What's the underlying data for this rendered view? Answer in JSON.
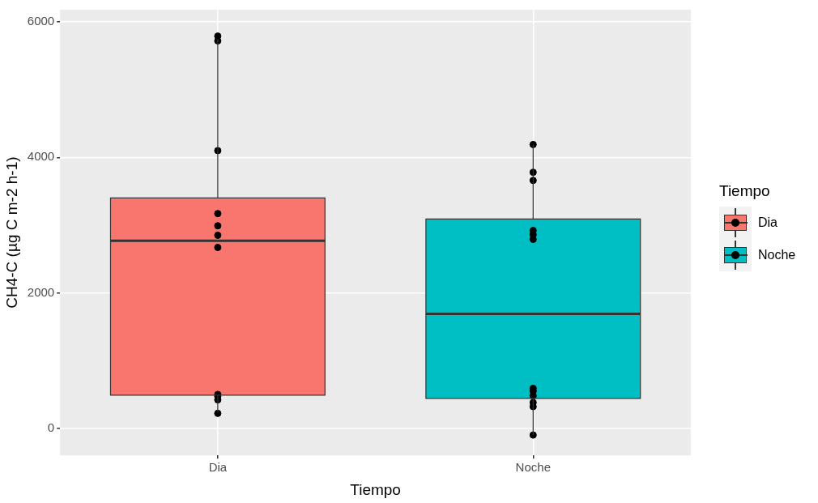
{
  "chart_data": {
    "type": "box",
    "xlabel": "Tiempo",
    "ylabel": "CH4-C (µg C m-2 h-1)",
    "legend_title": "Tiempo",
    "categories": [
      "Dia",
      "Noche"
    ],
    "series": [
      {
        "name": "Dia",
        "color": "#f8766d",
        "boxes": [
          {
            "low": 240,
            "q1": 490,
            "median": 2770,
            "q3": 3400,
            "high": 5750
          },
          null
        ]
      },
      {
        "name": "Noche",
        "color": "#00bfc4",
        "boxes": [
          null,
          {
            "low": -100,
            "q1": 440,
            "median": 1690,
            "q3": 3090,
            "high": 4190
          }
        ]
      },
      {
        "type": "scatter",
        "color": "#000000",
        "x": [
          "Dia",
          "Dia",
          "Dia",
          "Dia",
          "Dia",
          "Dia",
          "Dia",
          "Dia",
          "Dia",
          "Dia",
          "Dia",
          "Noche",
          "Noche",
          "Noche",
          "Noche",
          "Noche",
          "Noche",
          "Noche",
          "Noche",
          "Noche",
          "Noche",
          "Noche",
          "Noche"
        ],
        "values": [
          5790,
          5720,
          4100,
          3170,
          2990,
          2850,
          2670,
          500,
          470,
          420,
          220,
          4190,
          3780,
          3660,
          2920,
          2860,
          2790,
          590,
          550,
          480,
          380,
          320,
          -100
        ]
      }
    ],
    "ylim": [
      -400,
      6180
    ],
    "yticks": [
      0,
      2000,
      4000,
      6000
    ],
    "grid": true,
    "legend": "right",
    "marker": "circle"
  }
}
